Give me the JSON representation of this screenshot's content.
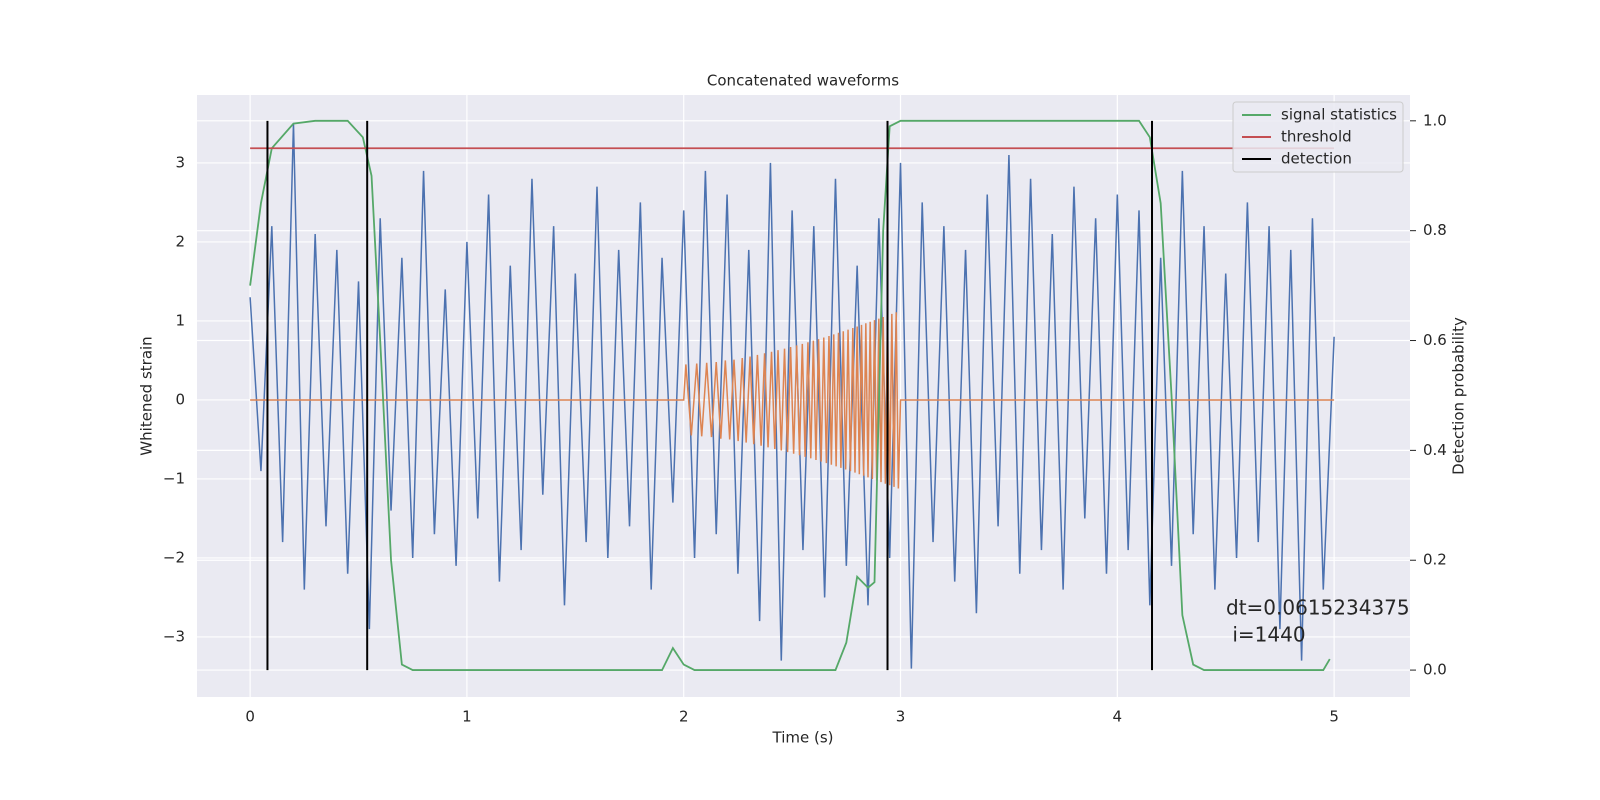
{
  "chart_data": {
    "type": "line",
    "title": "Concatenated waveforms",
    "xlabel": "Time (s)",
    "ylabel": "Whitened strain",
    "y2label": "Detection probability",
    "xlim": [
      -0.245,
      5.35
    ],
    "ylim": [
      -3.76,
      3.86
    ],
    "y2lim": [
      -0.049,
      1.047
    ],
    "xticks": [
      0,
      1,
      2,
      3,
      4,
      5
    ],
    "yticks": [
      {
        "value": -3,
        "label": "−3"
      },
      {
        "value": -2,
        "label": "−2"
      },
      {
        "value": -1,
        "label": "−1"
      },
      0,
      1,
      2,
      3
    ],
    "y2ticks": [
      {
        "value": 0,
        "label": "0.0"
      },
      0.2,
      0.4,
      0.6,
      0.8,
      {
        "value": 1,
        "label": "1.0"
      }
    ],
    "grid": true,
    "legend": "upper right",
    "noise": {
      "color": "#4c72b0",
      "x": [
        0,
        0.05,
        0.1,
        0.15,
        0.2,
        0.25,
        0.3,
        0.35,
        0.4,
        0.45,
        0.5,
        0.55,
        0.6,
        0.65,
        0.7,
        0.75,
        0.8,
        0.85,
        0.9,
        0.95,
        1,
        1.05,
        1.1,
        1.15,
        1.2,
        1.25,
        1.3,
        1.35,
        1.4,
        1.45,
        1.5,
        1.55,
        1.6,
        1.65,
        1.7,
        1.75,
        1.8,
        1.85,
        1.9,
        1.95,
        2,
        2.05,
        2.1,
        2.15,
        2.2,
        2.25,
        2.3,
        2.35,
        2.4,
        2.45,
        2.5,
        2.55,
        2.6,
        2.65,
        2.7,
        2.75,
        2.8,
        2.85,
        2.9,
        2.95,
        3,
        3.05,
        3.1,
        3.15,
        3.2,
        3.25,
        3.3,
        3.35,
        3.4,
        3.45,
        3.5,
        3.55,
        3.6,
        3.65,
        3.7,
        3.75,
        3.8,
        3.85,
        3.9,
        3.95,
        4,
        4.05,
        4.1,
        4.15,
        4.2,
        4.25,
        4.3,
        4.35,
        4.4,
        4.45,
        4.5,
        4.55,
        4.6,
        4.65,
        4.7,
        4.75,
        4.8,
        4.85,
        4.9,
        4.95,
        5
      ],
      "values": [
        1.3,
        -0.9,
        2.2,
        -1.8,
        3.5,
        -2.4,
        2.1,
        -1.6,
        1.9,
        -2.2,
        1.5,
        -2.9,
        2.3,
        -1.4,
        1.8,
        -2.0,
        2.9,
        -1.7,
        1.4,
        -2.1,
        2.0,
        -1.5,
        2.6,
        -2.3,
        1.7,
        -1.9,
        2.8,
        -1.2,
        2.2,
        -2.6,
        1.6,
        -1.8,
        2.7,
        -2.0,
        1.9,
        -1.6,
        2.5,
        -2.4,
        1.8,
        -1.3,
        2.4,
        -2.0,
        2.9,
        -1.7,
        2.6,
        -2.2,
        1.9,
        -2.8,
        3.0,
        -3.3,
        2.4,
        -1.9,
        2.2,
        -2.5,
        2.8,
        -2.1,
        1.7,
        -2.6,
        2.3,
        -2.0,
        3.0,
        -3.4,
        2.5,
        -1.8,
        2.2,
        -2.3,
        1.9,
        -2.7,
        2.6,
        -1.6,
        3.1,
        -2.2,
        2.8,
        -1.9,
        2.1,
        -2.4,
        2.7,
        -1.5,
        2.3,
        -2.2,
        2.6,
        -1.9,
        2.4,
        -2.6,
        1.8,
        -2.1,
        2.9,
        -1.7,
        2.2,
        -2.4,
        1.6,
        -2.0,
        2.5,
        -1.8,
        2.2,
        -2.9,
        1.9,
        -3.3,
        2.3,
        -2.4,
        0.8
      ]
    },
    "chirp": {
      "color": "#dd8452",
      "x": [
        0,
        2.0,
        2.01,
        2.035,
        2.06,
        2.083,
        2.106,
        2.128,
        2.15,
        2.171,
        2.192,
        2.212,
        2.232,
        2.251,
        2.27,
        2.288,
        2.306,
        2.323,
        2.34,
        2.357,
        2.373,
        2.389,
        2.405,
        2.42,
        2.435,
        2.45,
        2.465,
        2.479,
        2.493,
        2.507,
        2.521,
        2.534,
        2.547,
        2.56,
        2.573,
        2.586,
        2.598,
        2.61,
        2.622,
        2.634,
        2.646,
        2.658,
        2.67,
        2.681,
        2.692,
        2.703,
        2.714,
        2.725,
        2.736,
        2.747,
        2.758,
        2.769,
        2.78,
        2.79,
        2.8,
        2.81,
        2.82,
        2.83,
        2.84,
        2.85,
        2.86,
        2.87,
        2.88,
        2.89,
        2.9,
        2.91,
        2.92,
        2.93,
        2.94,
        2.95,
        2.96,
        2.97,
        2.98,
        2.99,
        3.0,
        5.0
      ],
      "values": [
        0,
        0,
        0.45,
        -0.45,
        0.46,
        -0.46,
        0.47,
        -0.47,
        0.48,
        -0.49,
        0.5,
        -0.5,
        0.51,
        -0.52,
        0.53,
        -0.54,
        0.55,
        -0.56,
        0.57,
        -0.58,
        0.59,
        -0.6,
        0.61,
        -0.62,
        0.63,
        -0.64,
        0.65,
        -0.66,
        0.67,
        -0.68,
        0.69,
        -0.7,
        0.71,
        -0.72,
        0.73,
        -0.74,
        0.75,
        -0.76,
        0.77,
        -0.78,
        0.79,
        -0.8,
        0.81,
        -0.82,
        0.83,
        -0.84,
        0.85,
        -0.86,
        0.87,
        -0.88,
        0.89,
        -0.9,
        0.91,
        -0.92,
        0.93,
        -0.94,
        0.95,
        -0.96,
        0.97,
        -0.98,
        0.99,
        -1.0,
        1.01,
        -1.02,
        1.03,
        -1.04,
        1.05,
        -1.06,
        1.07,
        -1.08,
        1.09,
        -1.1,
        1.11,
        -1.12,
        0,
        0
      ]
    },
    "series": [
      {
        "name": "signal statistics",
        "color": "#55a868",
        "axis": "y2",
        "x": [
          0,
          0.05,
          0.1,
          0.2,
          0.3,
          0.45,
          0.52,
          0.56,
          0.6,
          0.65,
          0.7,
          0.75,
          1.9,
          1.95,
          2.0,
          2.05,
          2.7,
          2.75,
          2.8,
          2.85,
          2.88,
          2.92,
          2.95,
          3.0,
          4.1,
          4.15,
          4.2,
          4.25,
          4.3,
          4.35,
          4.4,
          4.95,
          4.98
        ],
        "values": [
          0.7,
          0.85,
          0.95,
          0.995,
          1.0,
          1.0,
          0.97,
          0.9,
          0.6,
          0.2,
          0.01,
          0.0,
          0.0,
          0.04,
          0.01,
          0.0,
          0.0,
          0.05,
          0.17,
          0.15,
          0.16,
          0.8,
          0.99,
          1.0,
          1.0,
          0.97,
          0.85,
          0.5,
          0.1,
          0.01,
          0.0,
          0.0,
          0.02
        ]
      },
      {
        "name": "threshold",
        "color": "#c44e52",
        "axis": "y2",
        "x": [
          0,
          5
        ],
        "values": [
          0.95,
          0.95
        ]
      },
      {
        "name": "detection",
        "color": "#000000",
        "kind": "vline",
        "x": [
          0.08,
          0.54,
          2.94,
          4.16
        ]
      }
    ],
    "annotation": [
      "dt=0.0615234375",
      " i=1440"
    ]
  }
}
